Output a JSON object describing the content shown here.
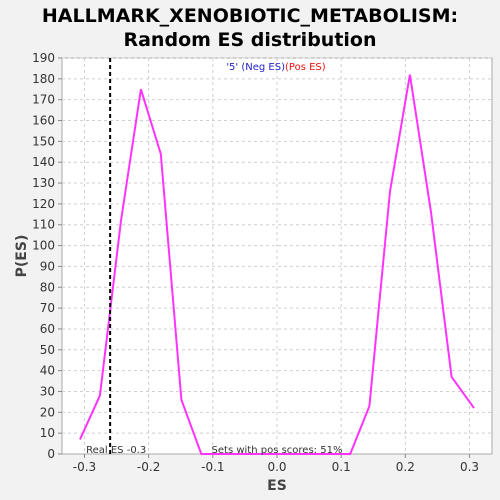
{
  "chart_data": {
    "type": "line",
    "title_line1": "HALLMARK_XENOBIOTIC_METABOLISM:",
    "title_line2": "Random ES distribution",
    "xlabel": "ES",
    "ylabel": "P(ES)",
    "xlim": [
      -0.335,
      0.335
    ],
    "ylim": [
      0,
      190
    ],
    "xticks": [
      -0.3,
      -0.2,
      -0.1,
      0.0,
      0.1,
      0.2,
      0.3
    ],
    "xtick_labels": [
      "-0.3",
      "-0.2",
      "-0.1",
      "0.0",
      "0.1",
      "0.2",
      "0.3"
    ],
    "yticks": [
      0,
      10,
      20,
      30,
      40,
      50,
      60,
      70,
      80,
      90,
      100,
      110,
      120,
      130,
      140,
      150,
      160,
      170,
      180,
      190
    ],
    "ytick_labels": [
      "0",
      "10",
      "20",
      "30",
      "40",
      "50",
      "60",
      "70",
      "80",
      "90",
      "100",
      "110",
      "120",
      "130",
      "140",
      "150",
      "160",
      "170",
      "180",
      "190"
    ],
    "grid": true,
    "series": [
      {
        "color": "#ff33ff",
        "x": [
          -0.307,
          -0.276,
          -0.243,
          -0.212,
          -0.181,
          -0.149,
          -0.118,
          0.114,
          0.144,
          0.176,
          0.207,
          0.24,
          0.272,
          0.307
        ],
        "y": [
          7,
          28,
          112,
          175,
          144,
          26,
          0,
          0,
          23,
          126,
          182,
          116,
          37,
          22
        ]
      }
    ],
    "real_es": -0.26,
    "real_es_label": "Real ES -0.3",
    "legend": {
      "prefix": "'5' (",
      "neg": "Neg ES",
      "pos": "Pos ES",
      "suffix": ")",
      "neg_color": "#2222cc",
      "pos_color": "#ee1111"
    },
    "pos_scores_label": "Sets with pos scores: 51%"
  }
}
